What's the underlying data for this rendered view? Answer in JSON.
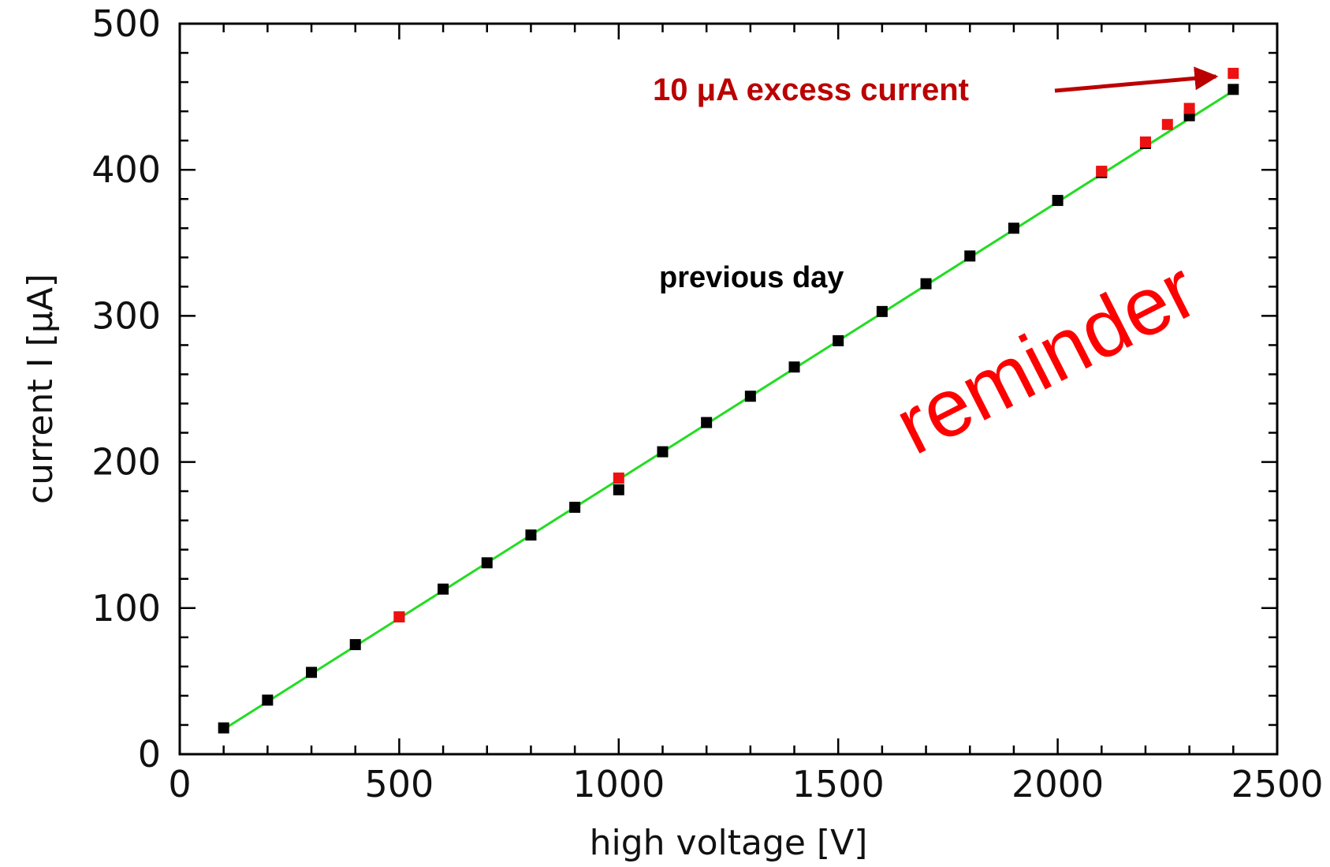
{
  "chart_data": {
    "type": "scatter",
    "xlabel": "high voltage [V]",
    "ylabel": "current I [μA]",
    "xlim": [
      0,
      2500
    ],
    "ylim": [
      0,
      500
    ],
    "x_major_ticks": [
      0,
      500,
      1000,
      1500,
      2000,
      2500
    ],
    "y_major_ticks": [
      0,
      100,
      200,
      300,
      400,
      500
    ],
    "x_tick_labels": [
      "0",
      "500",
      "1000",
      "1500",
      "2000",
      "2500"
    ],
    "y_tick_labels": [
      "0",
      "100",
      "200",
      "300",
      "400",
      "500"
    ],
    "grid": false,
    "series": [
      {
        "color": "#000000",
        "marker": "square",
        "points": [
          [
            100,
            18
          ],
          [
            200,
            37
          ],
          [
            300,
            56
          ],
          [
            400,
            75
          ],
          [
            500,
            94
          ],
          [
            600,
            113
          ],
          [
            700,
            131
          ],
          [
            800,
            150
          ],
          [
            900,
            169
          ],
          [
            1000,
            181
          ],
          [
            1100,
            207
          ],
          [
            1200,
            227
          ],
          [
            1300,
            245
          ],
          [
            1400,
            265
          ],
          [
            1500,
            283
          ],
          [
            1600,
            303
          ],
          [
            1700,
            322
          ],
          [
            1800,
            341
          ],
          [
            1900,
            360
          ],
          [
            2000,
            379
          ],
          [
            2100,
            398
          ],
          [
            2200,
            418
          ],
          [
            2300,
            437
          ],
          [
            2400,
            455
          ]
        ]
      },
      {
        "color": "#ee1111",
        "marker": "square",
        "points": [
          [
            500,
            94
          ],
          [
            1000,
            189
          ],
          [
            2100,
            399
          ],
          [
            2200,
            419
          ],
          [
            2250,
            431
          ],
          [
            2300,
            442
          ],
          [
            2400,
            466
          ]
        ]
      }
    ],
    "fit_line": {
      "color": "#22dd22",
      "from": [
        100,
        17
      ],
      "to": [
        2400,
        454
      ]
    },
    "annotations": [
      {
        "text": "10 μA excess current",
        "color": "#bb0000",
        "arrow_to": [
          2400,
          466
        ]
      },
      {
        "text": "previous day",
        "color": "#000000"
      },
      {
        "text": "reminder",
        "color": "#ff0000"
      }
    ]
  }
}
